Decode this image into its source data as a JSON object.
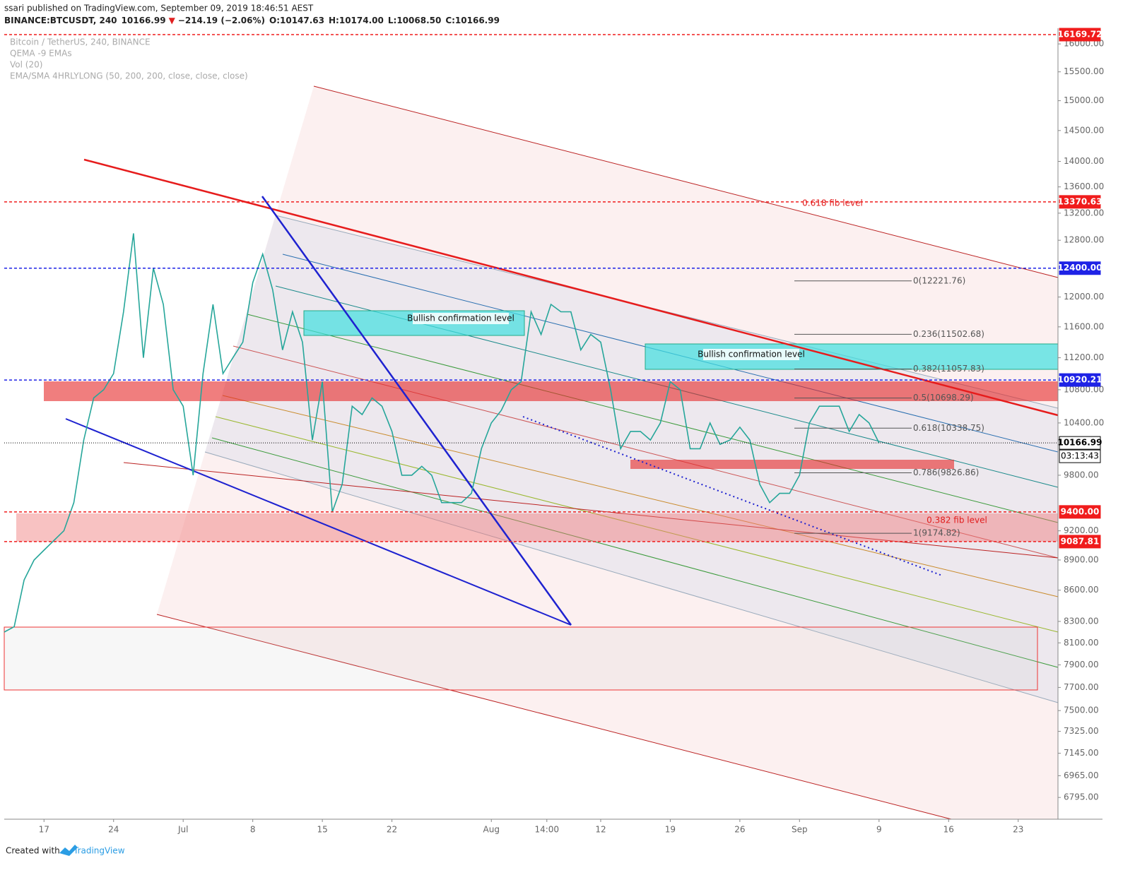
{
  "header": {
    "publisher": "ssari published on TradingView.com, September 09, 2019 18:46:51 AEST",
    "symbol": "BINANCE:BTCUSDT, 240",
    "last": "10166.99",
    "arrow": "▼",
    "change": "−214.19 (−2.06%)",
    "open": "O:10147.63",
    "high": "H:10174.00",
    "low": "L:10068.50",
    "close": "C:10166.99"
  },
  "legend": [
    "Bitcoin / TetherUS, 240, BINANCE",
    "QEMA -9 EMAs",
    "Vol (20)",
    "EMA/SMA 4HRLYLONG (50, 200, 200, close, close, close)"
  ],
  "footer": {
    "created": "Created with",
    "brand": "TradingView"
  },
  "chart_data": {
    "type": "line",
    "log_scale": true,
    "color": "#26a69a",
    "x": [
      "2019-06-13",
      "2019-06-14",
      "2019-06-15",
      "2019-06-16",
      "2019-06-17",
      "2019-06-18",
      "2019-06-19",
      "2019-06-20",
      "2019-06-21",
      "2019-06-22",
      "2019-06-23",
      "2019-06-24",
      "2019-06-25",
      "2019-06-26",
      "2019-06-27",
      "2019-06-28",
      "2019-06-29",
      "2019-06-30",
      "2019-07-01",
      "2019-07-02",
      "2019-07-03",
      "2019-07-04",
      "2019-07-05",
      "2019-07-06",
      "2019-07-07",
      "2019-07-08",
      "2019-07-09",
      "2019-07-10",
      "2019-07-11",
      "2019-07-12",
      "2019-07-13",
      "2019-07-14",
      "2019-07-15",
      "2019-07-16",
      "2019-07-17",
      "2019-07-18",
      "2019-07-19",
      "2019-07-20",
      "2019-07-21",
      "2019-07-22",
      "2019-07-23",
      "2019-07-24",
      "2019-07-25",
      "2019-07-26",
      "2019-07-27",
      "2019-07-28",
      "2019-07-29",
      "2019-07-30",
      "2019-07-31",
      "2019-08-01",
      "2019-08-02",
      "2019-08-03",
      "2019-08-04",
      "2019-08-05",
      "2019-08-06",
      "2019-08-07",
      "2019-08-08",
      "2019-08-09",
      "2019-08-10",
      "2019-08-11",
      "2019-08-12",
      "2019-08-13",
      "2019-08-14",
      "2019-08-15",
      "2019-08-16",
      "2019-08-17",
      "2019-08-18",
      "2019-08-19",
      "2019-08-20",
      "2019-08-21",
      "2019-08-22",
      "2019-08-23",
      "2019-08-24",
      "2019-08-25",
      "2019-08-26",
      "2019-08-27",
      "2019-08-28",
      "2019-08-29",
      "2019-08-30",
      "2019-08-31",
      "2019-09-01",
      "2019-09-02",
      "2019-09-03",
      "2019-09-04",
      "2019-09-05",
      "2019-09-06",
      "2019-09-07",
      "2019-09-08",
      "2019-09-09"
    ],
    "values": [
      8200,
      8250,
      8700,
      8900,
      9000,
      9100,
      9200,
      9500,
      10200,
      10700,
      10800,
      11000,
      11800,
      12900,
      11200,
      12400,
      11900,
      10800,
      10600,
      9800,
      11000,
      11900,
      11000,
      11200,
      11400,
      12200,
      12600,
      12100,
      11300,
      11800,
      11400,
      10200,
      10900,
      9400,
      9700,
      10600,
      10500,
      10700,
      10600,
      10300,
      9800,
      9800,
      9900,
      9800,
      9500,
      9500,
      9500,
      9600,
      10100,
      10400,
      10550,
      10800,
      10900,
      11800,
      11500,
      11900,
      11800,
      11800,
      11300,
      11500,
      11400,
      10800,
      10100,
      10300,
      10300,
      10200,
      10400,
      10900,
      10800,
      10100,
      10100,
      10400,
      10150,
      10200,
      10350,
      10200,
      9700,
      9500,
      9600,
      9600,
      9800,
      10400,
      10600,
      10600,
      10600,
      10300,
      10500,
      10400,
      10166.99
    ],
    "xlim": [
      "2019-06-13",
      "2019-09-27"
    ],
    "ylim": [
      6629,
      16196
    ],
    "xticks": [
      {
        "value": "2019-06-17",
        "label": "17"
      },
      {
        "value": "2019-06-24",
        "label": "24"
      },
      {
        "value": "2019-07-01",
        "label": "Jul"
      },
      {
        "value": "2019-07-08",
        "label": "8"
      },
      {
        "value": "2019-07-15",
        "label": "15"
      },
      {
        "value": "2019-07-22",
        "label": "22"
      },
      {
        "value": "2019-08-01",
        "label": "Aug"
      },
      {
        "value": "2019-08-06T14:00",
        "label": "14:00"
      },
      {
        "value": "2019-08-12",
        "label": "12"
      },
      {
        "value": "2019-08-19",
        "label": "19"
      },
      {
        "value": "2019-08-26",
        "label": "26"
      },
      {
        "value": "2019-09-01",
        "label": "Sep"
      },
      {
        "value": "2019-09-09",
        "label": "9"
      },
      {
        "value": "2019-09-16",
        "label": "16"
      },
      {
        "value": "2019-09-23",
        "label": "23"
      }
    ],
    "yticks": [
      {
        "value": 16000,
        "label": "16000.00"
      },
      {
        "value": 15500,
        "label": "15500.00"
      },
      {
        "value": 15000,
        "label": "15000.00"
      },
      {
        "value": 14500,
        "label": "14500.00"
      },
      {
        "value": 14000,
        "label": "14000.00"
      },
      {
        "value": 13600,
        "label": "13600.00"
      },
      {
        "value": 13200,
        "label": "13200.00"
      },
      {
        "value": 12800,
        "label": "12800.00"
      },
      {
        "value": 12000,
        "label": "12000.00"
      },
      {
        "value": 11600,
        "label": "11600.00"
      },
      {
        "value": 11200,
        "label": "11200.00"
      },
      {
        "value": 10800,
        "label": "10800.00"
      },
      {
        "value": 10400,
        "label": "10400.00"
      },
      {
        "value": 9800,
        "label": "9800.00"
      },
      {
        "value": 9200,
        "label": "9200.00"
      },
      {
        "value": 8900,
        "label": "8900.00"
      },
      {
        "value": 8600,
        "label": "8600.00"
      },
      {
        "value": 8300,
        "label": "8300.00"
      },
      {
        "value": 8100,
        "label": "8100.00"
      },
      {
        "value": 7900,
        "label": "7900.00"
      },
      {
        "value": 7700,
        "label": "7700.00"
      },
      {
        "value": 7500,
        "label": "7500.00"
      },
      {
        "value": 7325,
        "label": "7325.00"
      },
      {
        "value": 7145,
        "label": "7145.00"
      },
      {
        "value": 6965,
        "label": "6965.00"
      },
      {
        "value": 6795,
        "label": "6795.00"
      }
    ],
    "price_lines": [
      {
        "value": 16169.72,
        "color": "#f01c1c",
        "style": "dashed"
      },
      {
        "value": 13370.63,
        "color": "#f01c1c",
        "style": "dashed"
      },
      {
        "value": 12400,
        "label": "12400.00",
        "color": "#1e22e6",
        "style": "dashed"
      },
      {
        "value": 10920.21,
        "color": "#1e22e6",
        "style": "dashed"
      },
      {
        "value": 10166.99,
        "color": "#000000",
        "style": "dotted"
      },
      {
        "value": 9400,
        "label": "9400.00",
        "color": "#f01c1c",
        "style": "dashed"
      },
      {
        "value": 9087.81,
        "color": "#f01c1c",
        "style": "dashed"
      }
    ],
    "countdown": "03:13:43",
    "fib": [
      {
        "label": "0(12221.76)",
        "value": 12221.76
      },
      {
        "label": "0.236(11502.68)",
        "value": 11502.68
      },
      {
        "label": "0.382(11057.83)",
        "value": 11057.83
      },
      {
        "label": "0.5(10698.29)",
        "value": 10698.29
      },
      {
        "label": "0.618(10338.75)",
        "value": 10338.75
      },
      {
        "label": "0.786(9826.86)",
        "value": 9826.86
      },
      {
        "label": "1(9174.82)",
        "value": 9174.82
      }
    ],
    "annotations": [
      "0.618 fib level",
      "0.382 fib level",
      "Bullish confirmation level",
      "Bullish confirmation level"
    ]
  }
}
